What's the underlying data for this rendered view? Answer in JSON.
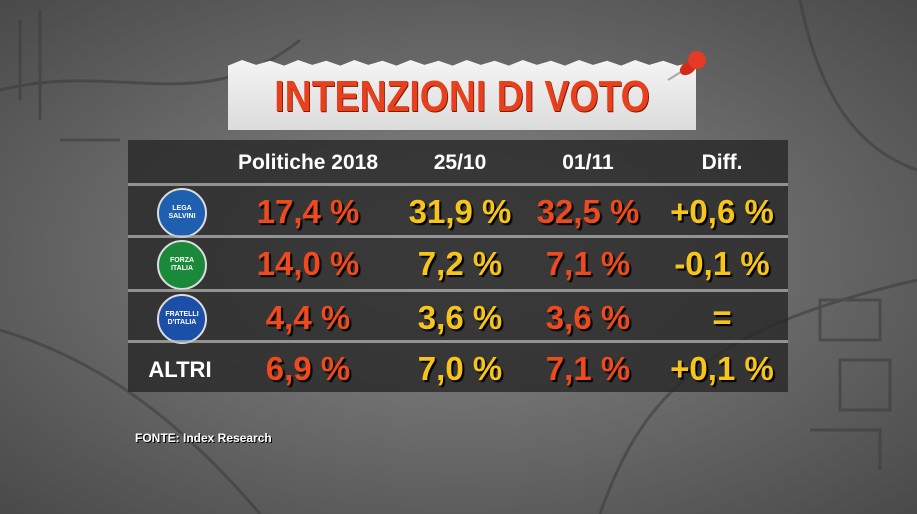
{
  "header": {
    "title": "INTENZIONI DI VOTO"
  },
  "table": {
    "columns": [
      "Politiche 2018",
      "25/10",
      "01/11",
      "Diff."
    ],
    "rows": [
      {
        "label": "LEGA SALVINI",
        "logo": true,
        "values": [
          "17,4 %",
          "31,9 %",
          "32,5 %",
          "+0,6 %"
        ]
      },
      {
        "label": "FORZA ITALIA",
        "logo": true,
        "values": [
          "14,0 %",
          "7,2 %",
          "7,1 %",
          "-0,1 %"
        ]
      },
      {
        "label": "FRATELLI D'ITALIA",
        "logo": true,
        "values": [
          "4,4 %",
          "3,6 %",
          "3,6 %",
          "="
        ]
      },
      {
        "label": "ALTRI",
        "logo": false,
        "values": [
          "6,9 %",
          "7,0 %",
          "7,1 %",
          "+0,1 %"
        ]
      }
    ]
  },
  "footer": {
    "source_label": "FONTE:",
    "source": "Index Research"
  }
}
